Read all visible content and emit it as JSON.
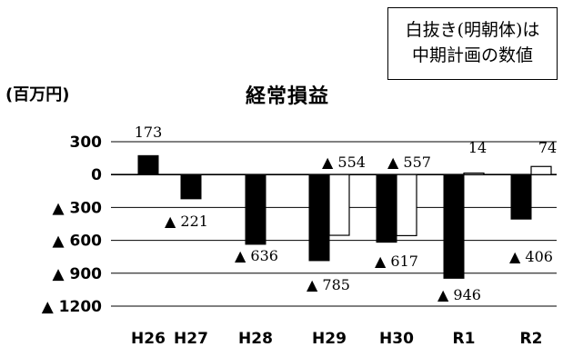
{
  "legend_note": {
    "line1": "白抜き(明朝体)は",
    "line2": "中期計画の数値"
  },
  "chart_data": {
    "type": "bar",
    "title": "経常損益",
    "unit_label": "(百万円)",
    "xlabel": "",
    "ylabel": "",
    "ylim": [
      -1200,
      300
    ],
    "y_ticks": [
      300,
      0,
      -300,
      -600,
      -900,
      -1200
    ],
    "y_tick_labels": [
      "300",
      "0",
      "▲ 300",
      "▲ 600",
      "▲ 900",
      "▲ 1200"
    ],
    "grid": true,
    "categories": [
      "H26",
      "H27",
      "H28",
      "H29",
      "H30",
      "R1",
      "R2"
    ],
    "series": [
      {
        "style": "filled",
        "values": [
          173,
          -221,
          -636,
          -785,
          -617,
          -946,
          -406
        ],
        "labels": [
          "173",
          "▲ 221",
          "▲ 636",
          "▲ 785",
          "▲ 617",
          "▲ 946",
          "▲ 406"
        ]
      },
      {
        "style": "outline",
        "values": [
          null,
          null,
          null,
          -554,
          -557,
          14,
          74
        ],
        "labels": [
          "",
          "",
          "",
          "▲ 554",
          "▲ 557",
          "14",
          "74"
        ]
      }
    ],
    "colors": {
      "filled": "#000000",
      "outline": "#ffffff",
      "stroke": "#000000"
    }
  }
}
